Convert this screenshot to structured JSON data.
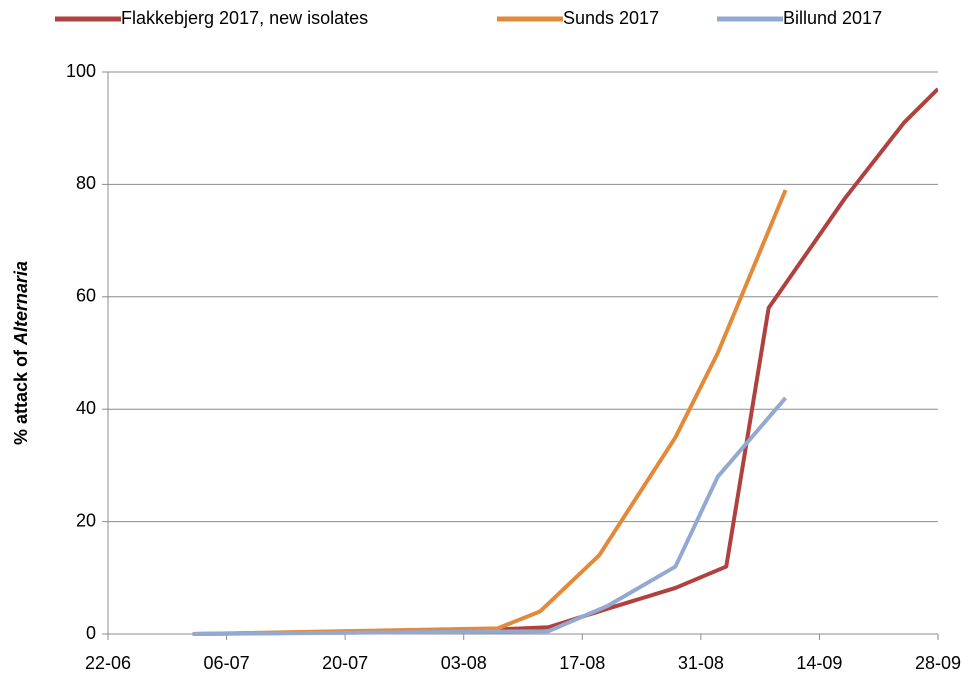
{
  "chart_data": {
    "type": "line",
    "ylabel": [
      "% attack of",
      "Alternaria"
    ],
    "xlim": [
      "22-06",
      "28-09"
    ],
    "xticks": [
      "22-06",
      "06-07",
      "20-07",
      "03-08",
      "17-08",
      "31-08",
      "14-09",
      "28-09"
    ],
    "ylim": [
      0,
      100
    ],
    "yticks": [
      0,
      20,
      40,
      60,
      80,
      100
    ],
    "grid": true,
    "legend": "top",
    "series": [
      {
        "name": "Flakkebjerg 2017, new isolates",
        "color": "#b0413e",
        "x": [
          "02-07",
          "14-07",
          "26-07",
          "07-08",
          "13-08",
          "20-08",
          "28-08",
          "03-09",
          "08-09",
          "17-09",
          "24-09",
          "28-09"
        ],
        "values": [
          0,
          0.2,
          0.3,
          0.8,
          1.2,
          4.5,
          8.2,
          12,
          58,
          77.5,
          91,
          97
        ]
      },
      {
        "name": "Sunds 2017",
        "color": "#e38a3a",
        "x": [
          "02-07",
          "07-08",
          "12-08",
          "19-08",
          "28-08",
          "02-09",
          "10-09"
        ],
        "values": [
          0,
          1,
          4,
          14,
          35,
          50,
          79
        ]
      },
      {
        "name": "Billund 2017",
        "color": "#93a9d2",
        "x": [
          "02-07",
          "13-08",
          "20-08",
          "28-08",
          "02-09",
          "10-09"
        ],
        "values": [
          0,
          0.5,
          5,
          12,
          28,
          42
        ]
      }
    ]
  }
}
